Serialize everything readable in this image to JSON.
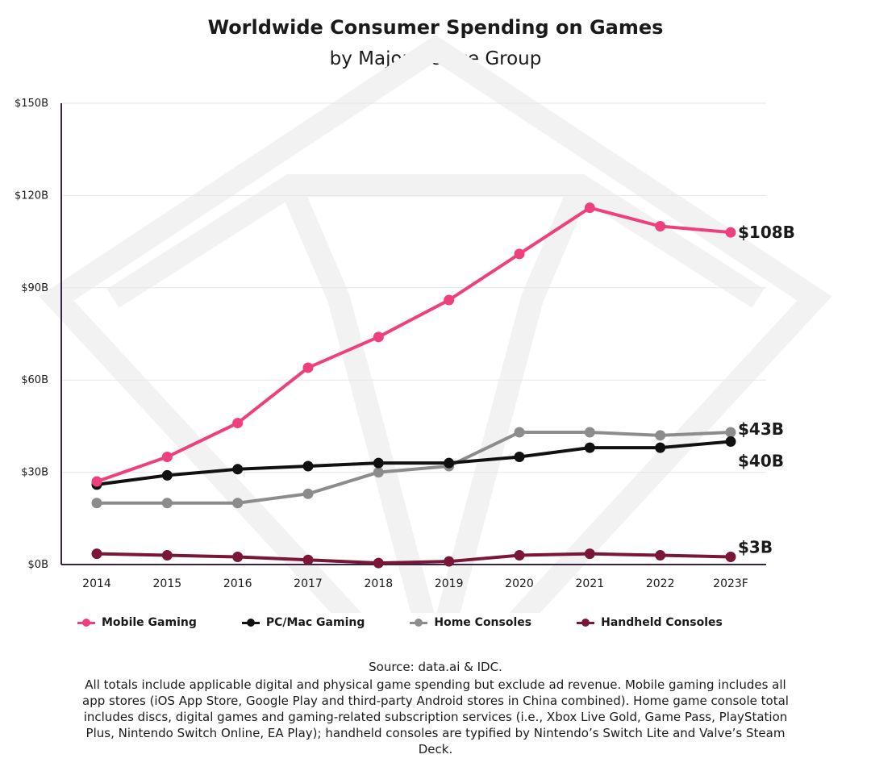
{
  "chart_data": {
    "type": "line",
    "title": "Worldwide Consumer Spending on Games",
    "subtitle": "by Major Device Group",
    "categories": [
      "2014",
      "2015",
      "2016",
      "2017",
      "2018",
      "2019",
      "2020",
      "2021",
      "2022",
      "2023F"
    ],
    "y_ticks": [
      "$0B",
      "$30B",
      "$60B",
      "$90B",
      "$120B",
      "$150B"
    ],
    "ylim": [
      0,
      150
    ],
    "grid": "horizontal",
    "legend_position": "bottom",
    "series": [
      {
        "name": "Mobile Gaming",
        "color": "#ee3f7f",
        "values": [
          27,
          35,
          46,
          64,
          74,
          86,
          101,
          116,
          110,
          108
        ],
        "end_label": "$108B"
      },
      {
        "name": "PC/Mac Gaming",
        "color": "#111111",
        "values": [
          26,
          29,
          31,
          32,
          33,
          33,
          35,
          38,
          38,
          40
        ],
        "end_label": "$40B"
      },
      {
        "name": "Home Consoles",
        "color": "#8c8c8c",
        "values": [
          20,
          20,
          20,
          23,
          30,
          32,
          43,
          43,
          42,
          43
        ],
        "end_label": "$43B"
      },
      {
        "name": "Handheld Consoles",
        "color": "#7a1638",
        "values": [
          3.5,
          3,
          2.5,
          1.5,
          0.5,
          1,
          3,
          3.5,
          3,
          2.5
        ],
        "end_label": "$3B"
      }
    ]
  },
  "footer": {
    "source": "Source: data.ai & IDC.",
    "note": "All totals include applicable digital and physical game spending but exclude ad revenue. Mobile gaming includes all app stores (iOS App Store, Google Play and third-party Android stores in China combined). Home game console total includes discs, digital games and gaming-related subscription services (i.e., Xbox Live Gold, Game Pass, PlayStation Plus, Nintendo Switch Online, EA Play); handheld consoles are typified by Nintendo’s Switch Lite and Valve’s Steam Deck."
  }
}
